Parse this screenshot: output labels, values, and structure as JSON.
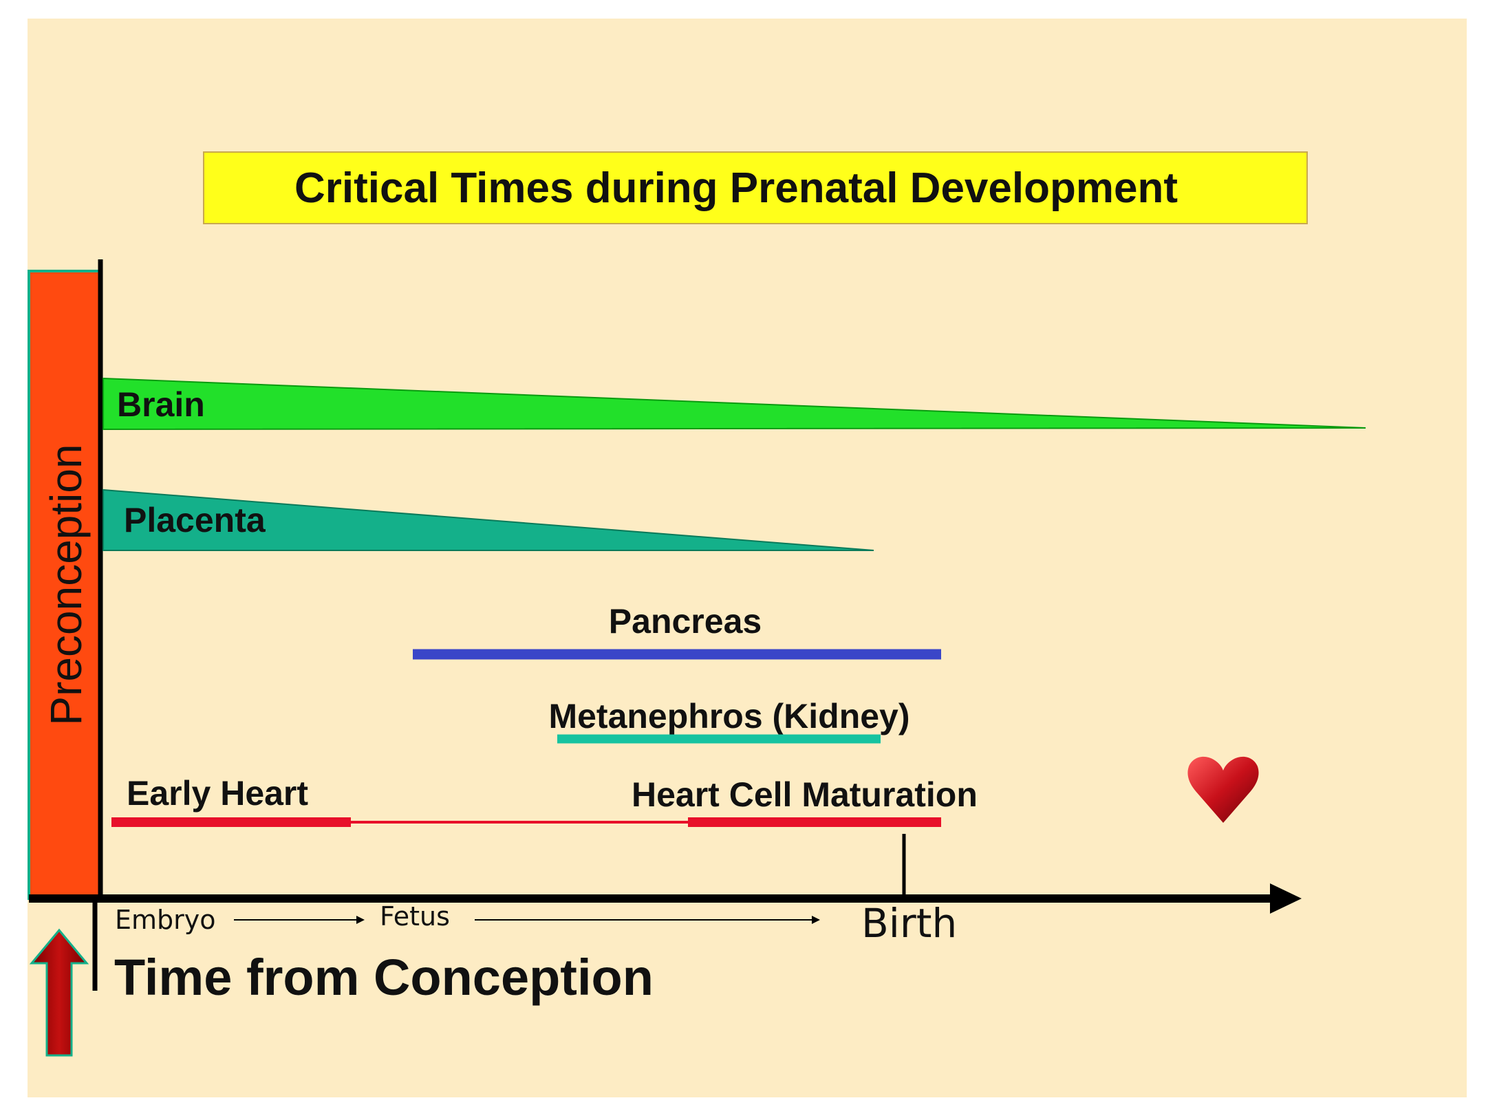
{
  "title": "Critical Times during Prenatal Development",
  "preconception_label": "Preconception",
  "organs": {
    "brain": "Brain",
    "placenta": "Placenta",
    "pancreas": "Pancreas",
    "kidney": "Metanephros (Kidney)",
    "early_heart": "Early Heart",
    "heart_maturation": "Heart Cell Maturation"
  },
  "timeline": {
    "embryo": "Embryo",
    "fetus": "Fetus",
    "birth": "Birth",
    "axis_label": "Time from Conception"
  },
  "colors": {
    "background": "#fdecc4",
    "title_box": "#ffff1a",
    "preconception": "#ff4a10",
    "brain": "#22e02a",
    "placenta": "#14b08a",
    "pancreas": "#3a46c8",
    "kidney": "#16c3a0",
    "heart": "#e8102a"
  },
  "icons": [
    "heart-icon",
    "up-arrow-icon"
  ]
}
